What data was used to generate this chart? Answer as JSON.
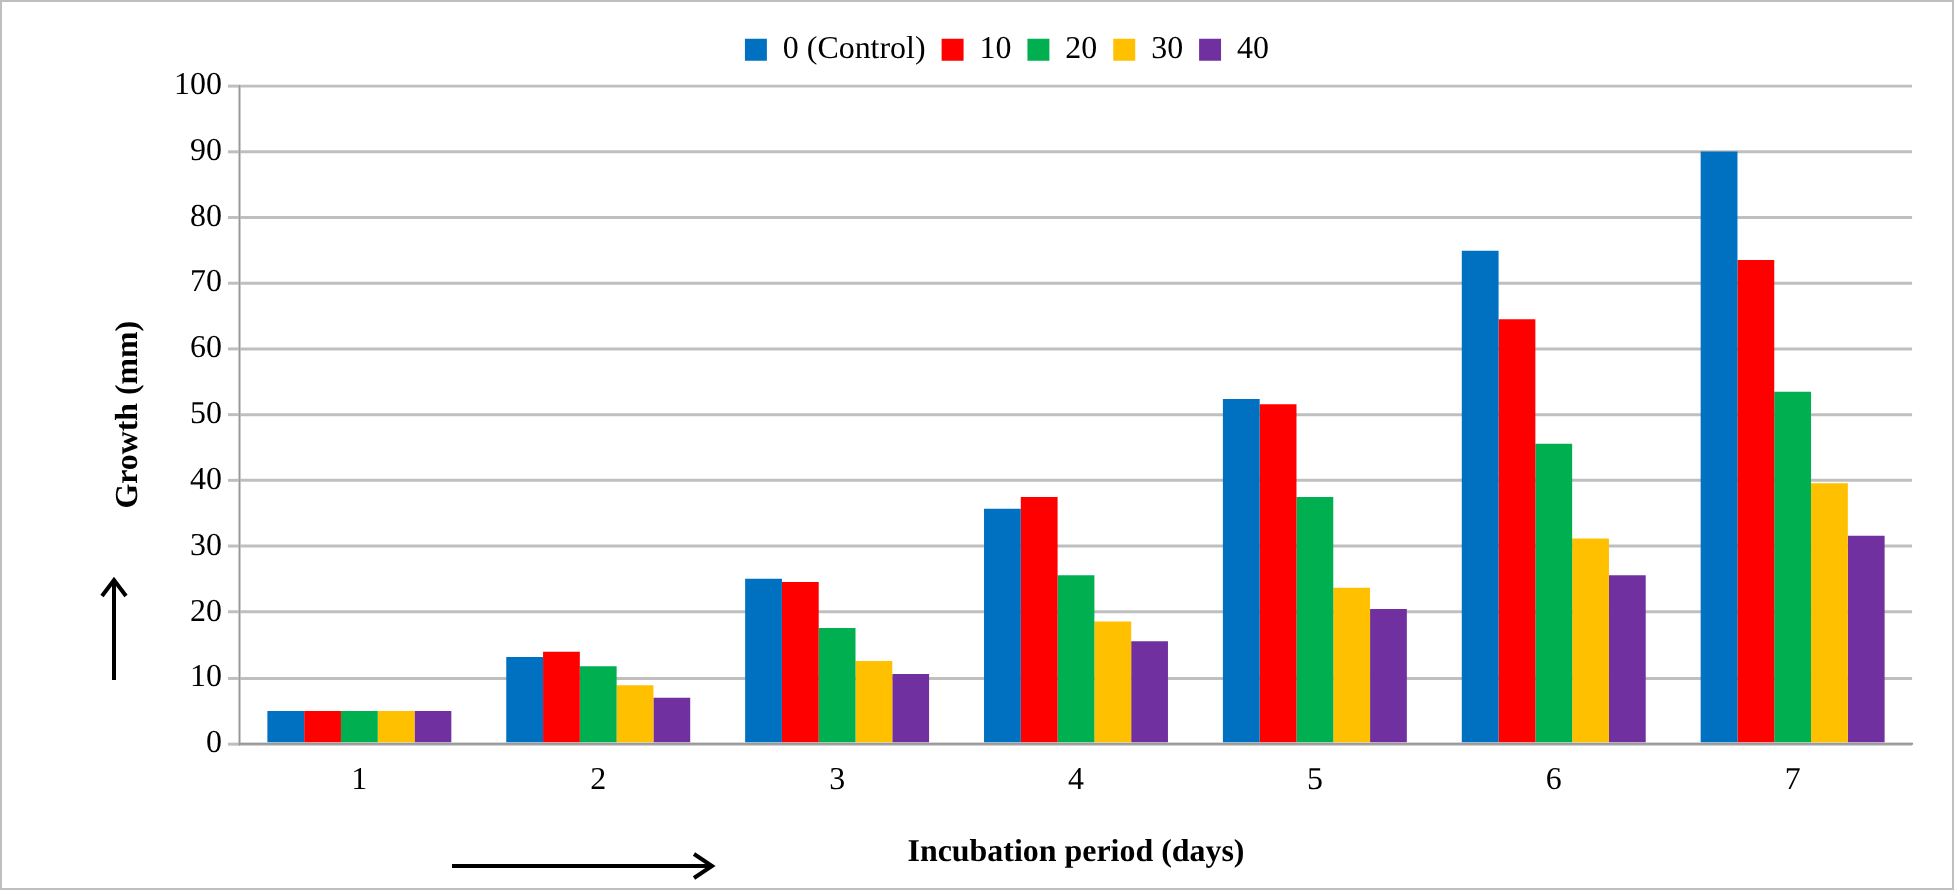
{
  "chart_data": {
    "type": "bar",
    "xlabel": "Incubation period (days)",
    "ylabel": "Growth (mm)",
    "categories": [
      "1",
      "2",
      "3",
      "4",
      "5",
      "6",
      "7"
    ],
    "series": [
      {
        "name": "0 (Control)",
        "color": "#0070c0",
        "values": [
          5,
          13.2,
          25.1,
          35.7,
          52.4,
          74.9,
          90
        ]
      },
      {
        "name": "10",
        "color": "#ff0000",
        "values": [
          5,
          14,
          24.6,
          37.5,
          51.6,
          64.5,
          73.5
        ]
      },
      {
        "name": "20",
        "color": "#00b050",
        "values": [
          5,
          11.8,
          17.6,
          25.6,
          37.5,
          45.6,
          53.5
        ]
      },
      {
        "name": "30",
        "color": "#ffc000",
        "values": [
          5,
          8.9,
          12.6,
          18.6,
          23.7,
          31.2,
          39.6
        ]
      },
      {
        "name": "40",
        "color": "#7030a0",
        "values": [
          5,
          7,
          10.6,
          15.6,
          20.5,
          25.6,
          31.6
        ]
      }
    ],
    "ylim": [
      0,
      100
    ],
    "yticks": [
      0,
      10,
      20,
      30,
      40,
      50,
      60,
      70,
      80,
      90,
      100
    ],
    "grid": "y",
    "legend": "top"
  }
}
